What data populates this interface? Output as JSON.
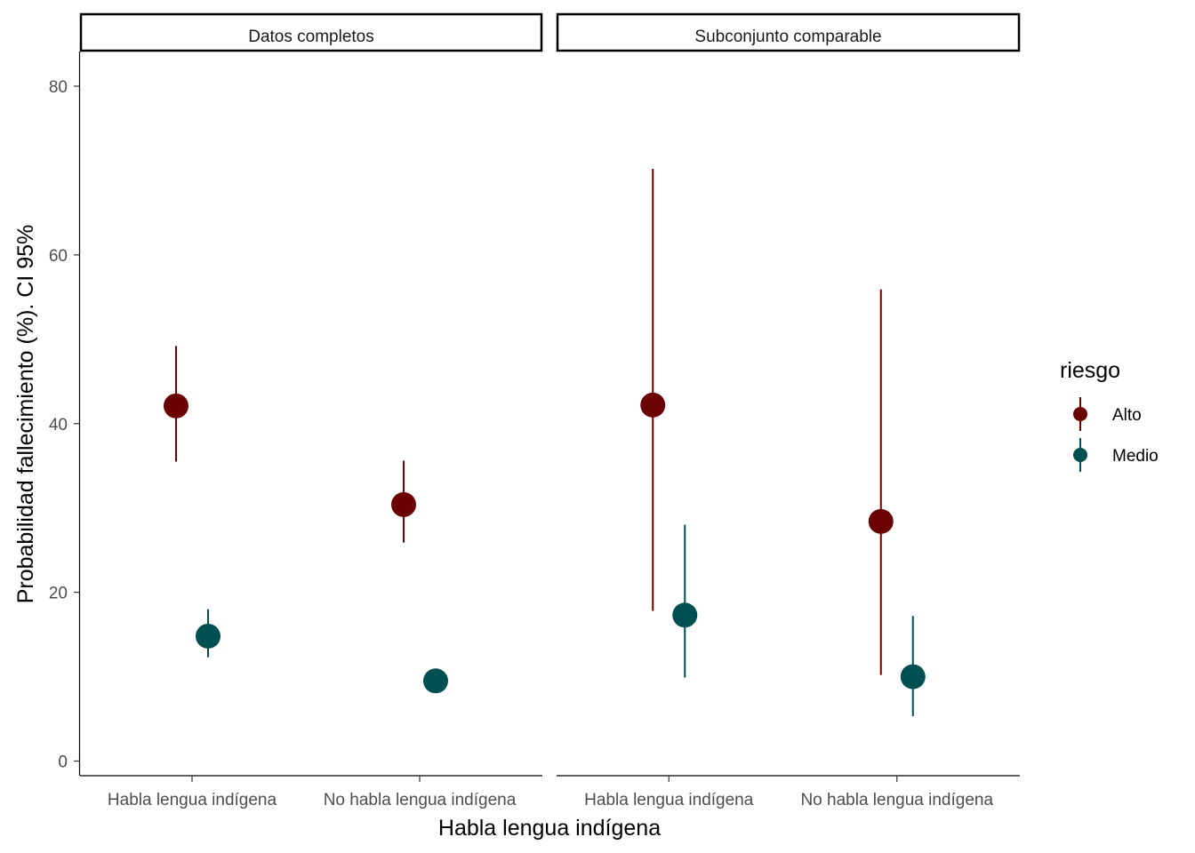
{
  "chart_data": {
    "type": "scatter",
    "subtype": "pointrange-faceted",
    "xlabel": "Habla lengua indígena",
    "ylabel": "Probabilidad fallecimiento (%). CI 95%",
    "ylim": [
      -2,
      84
    ],
    "yticks": [
      0,
      20,
      40,
      60,
      80
    ],
    "categories": [
      "Habla lengua indígena",
      "No habla lengua indígena"
    ],
    "grid": false,
    "legend": {
      "title": "riesgo",
      "position": "right",
      "entries": [
        {
          "name": "Alto",
          "color": "#6b0000"
        },
        {
          "name": "Medio",
          "color": "#004f52"
        }
      ]
    },
    "facets": [
      {
        "label": "Datos completos",
        "series": [
          {
            "name": "Alto",
            "points": [
              {
                "category": "Habla lengua indígena",
                "estimate": 42.1,
                "lower": 35.5,
                "upper": 49.2
              },
              {
                "category": "No habla lengua indígena",
                "estimate": 30.4,
                "lower": 25.9,
                "upper": 35.6
              }
            ]
          },
          {
            "name": "Medio",
            "points": [
              {
                "category": "Habla lengua indígena",
                "estimate": 14.8,
                "lower": 12.3,
                "upper": 18.0
              },
              {
                "category": "No habla lengua indígena",
                "estimate": 9.5,
                "lower": 8.5,
                "upper": 10.6
              }
            ]
          }
        ]
      },
      {
        "label": "Subconjunto comparable",
        "series": [
          {
            "name": "Alto",
            "points": [
              {
                "category": "Habla lengua indígena",
                "estimate": 42.2,
                "lower": 17.8,
                "upper": 70.2
              },
              {
                "category": "No habla lengua indígena",
                "estimate": 28.4,
                "lower": 10.2,
                "upper": 55.9
              }
            ]
          },
          {
            "name": "Medio",
            "points": [
              {
                "category": "Habla lengua indígena",
                "estimate": 17.3,
                "lower": 9.9,
                "upper": 28.0
              },
              {
                "category": "No habla lengua indígena",
                "estimate": 10.0,
                "lower": 5.3,
                "upper": 17.2
              }
            ]
          }
        ]
      }
    ]
  }
}
